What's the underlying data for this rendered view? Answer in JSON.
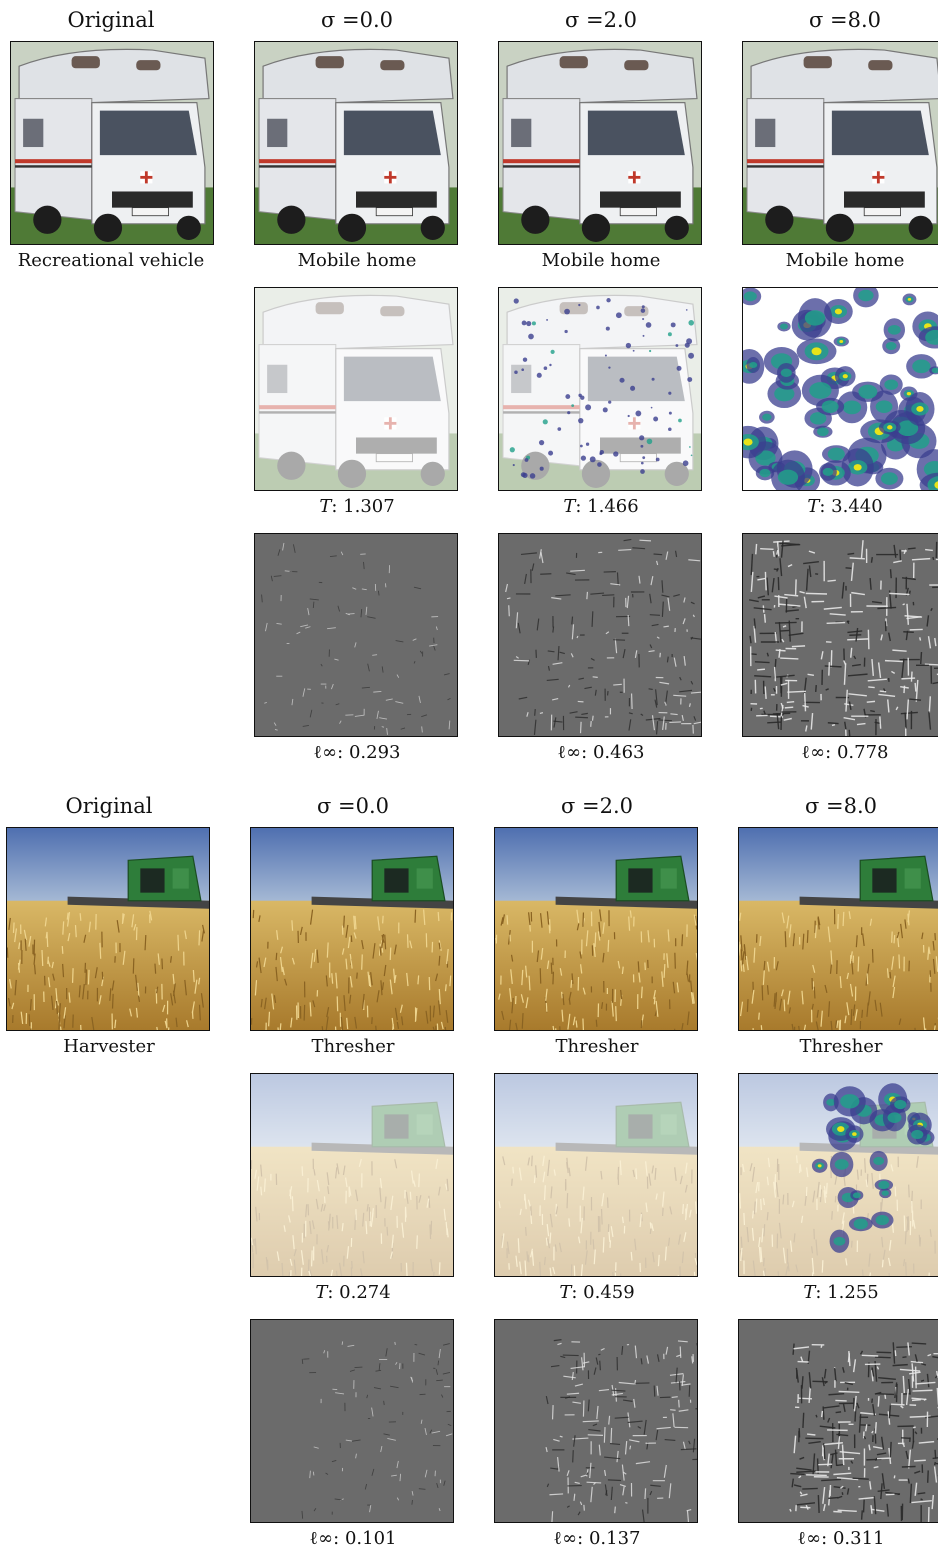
{
  "figure": {
    "blocks": [
      {
        "id": "rv",
        "headers": [
          "Original",
          "σ =0.0",
          "σ =2.0",
          "σ =8.0"
        ],
        "original_label": "Recreational vehicle",
        "predictions": [
          "Mobile home",
          "Mobile home",
          "Mobile home"
        ],
        "T_values": [
          "1.307",
          "1.466",
          "3.440"
        ],
        "linf_values": [
          "0.293",
          "0.463",
          "0.778"
        ]
      },
      {
        "id": "harvester",
        "headers": [
          "Original",
          "σ =0.0",
          "σ =2.0",
          "σ =8.0"
        ],
        "original_label": "Harvester",
        "predictions": [
          "Thresher",
          "Thresher",
          "Thresher"
        ],
        "T_values": [
          "0.274",
          "0.459",
          "1.255"
        ],
        "linf_values": [
          "0.101",
          "0.137",
          "0.311"
        ]
      }
    ],
    "T_prefix": "T",
    "linf_prefix": "ℓ∞",
    "colors": {
      "gray_bg": "#6b6b6b",
      "heat_low": "#3b3f8f",
      "heat_mid": "#21a08a",
      "heat_high": "#e8e419"
    }
  }
}
